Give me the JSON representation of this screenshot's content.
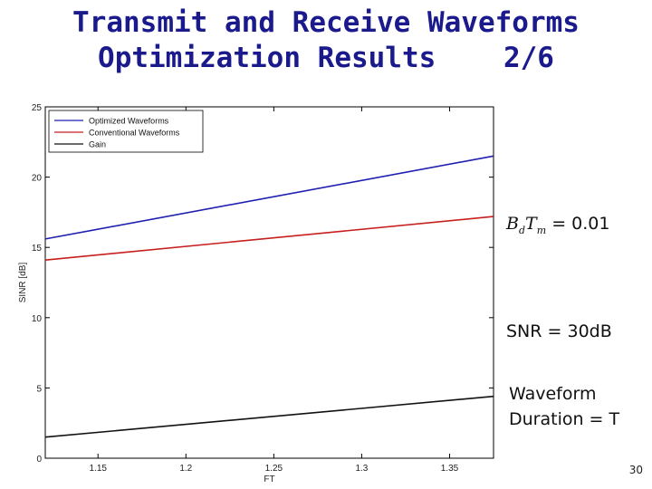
{
  "slide": {
    "title_line1": "Transmit and Receive Waveforms",
    "title_line2": "Optimization Results    2/6",
    "page_number": "30"
  },
  "annotations": {
    "bd_label_b": "B",
    "bd_label_d": "d",
    "bd_label_t": "T",
    "bd_label_m": "m",
    "bd_value": "= 0.01",
    "snr_label": "SNR = 30dB",
    "waveform_line1": "Waveform",
    "waveform_line2": "Duration = T"
  },
  "chart_data": {
    "type": "line",
    "title": "",
    "xlabel": "FT",
    "ylabel": "SINR [dB]",
    "xlim": [
      1.12,
      1.375
    ],
    "ylim": [
      0,
      25
    ],
    "xticks": [
      1.15,
      1.2,
      1.25,
      1.3,
      1.35
    ],
    "yticks": [
      0,
      5,
      10,
      15,
      20,
      25
    ],
    "grid": false,
    "legend_position": "top-left",
    "series": [
      {
        "name": "Optimized Waveforms",
        "color": "#1f1fb0",
        "x": [
          1.12,
          1.375
        ],
        "y": [
          15.6,
          21.5
        ]
      },
      {
        "name": "Conventional Waveforms",
        "color": "#c81e1e",
        "x": [
          1.12,
          1.375
        ],
        "y": [
          14.1,
          17.2
        ]
      },
      {
        "name": "Gain",
        "color": "#111111",
        "x": [
          1.12,
          1.375
        ],
        "y": [
          1.5,
          4.4
        ]
      }
    ]
  }
}
